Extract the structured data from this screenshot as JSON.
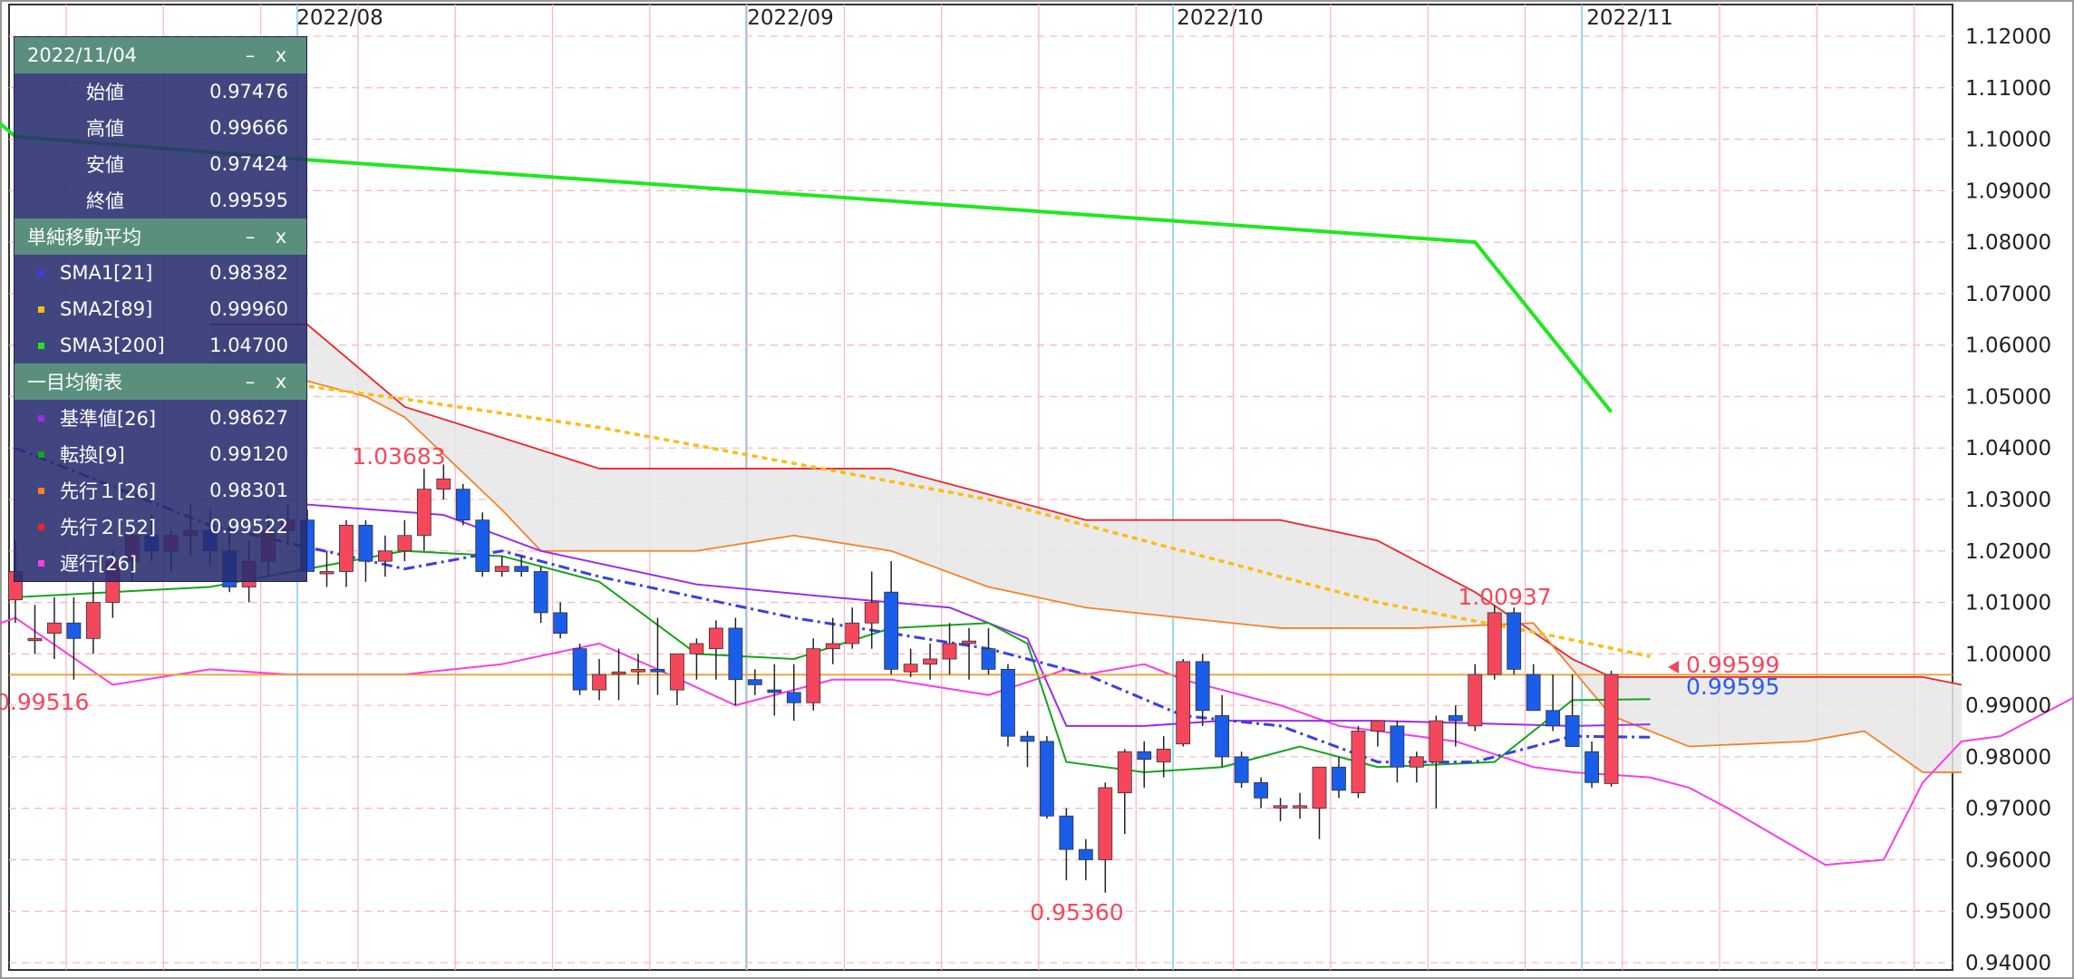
{
  "colors": {
    "up": "#f5475c",
    "down": "#1a5de8",
    "sma1": "#3b3fe0",
    "sma2": "#fdbc12",
    "sma3": "#1ee81e",
    "kijun": "#9c2cf0",
    "tenkan": "#12a61a",
    "senkou1": "#f58226",
    "senkou2": "#f0222a",
    "chikou": "#fa3ce6",
    "cloud": "#e6e6e6",
    "grid": "#f9b8c4",
    "month": "#7fcbe8",
    "hline": "#f0a030"
  },
  "panel": {
    "date": "2022/11/04",
    "ohlc": [
      {
        "label": "始値",
        "value": "0.97476"
      },
      {
        "label": "高値",
        "value": "0.99666"
      },
      {
        "label": "安値",
        "value": "0.97424"
      },
      {
        "label": "終値",
        "value": "0.99595"
      }
    ],
    "sma_title": "単純移動平均",
    "sma": [
      {
        "label": "SMA1[21]",
        "value": "0.98382",
        "color": "#3b3fe0"
      },
      {
        "label": "SMA2[89]",
        "value": "0.99960",
        "color": "#fdbc12"
      },
      {
        "label": "SMA3[200]",
        "value": "1.04700",
        "color": "#1ee81e"
      }
    ],
    "ichimoku_title": "一目均衡表",
    "ichimoku": [
      {
        "label": "基準値[26]",
        "value": "0.98627",
        "color": "#9c2cf0"
      },
      {
        "label": "転換[9]",
        "value": "0.99120",
        "color": "#12a61a"
      },
      {
        "label": "先行１[26]",
        "value": "0.98301",
        "color": "#f58226"
      },
      {
        "label": "先行２[52]",
        "value": "0.99522",
        "color": "#f0222a"
      },
      {
        "label": "遅行[26]",
        "value": "",
        "color": "#fa3ce6"
      }
    ],
    "min_label": "–",
    "close_label": "x"
  },
  "chart_data": {
    "type": "candlestick",
    "x_ticks": [
      "2022/08",
      "2022/09",
      "2022/10",
      "2022/11"
    ],
    "ylim": [
      0.94,
      1.12
    ],
    "y_ticks": [
      "1.12000",
      "1.11000",
      "1.10000",
      "1.09000",
      "1.08000",
      "1.07000",
      "1.06000",
      "1.05000",
      "1.04000",
      "1.03000",
      "1.02000",
      "1.01000",
      "1.00000",
      "0.99000",
      "0.98000",
      "0.97000",
      "0.96000",
      "0.95000",
      "0.94000"
    ],
    "price_line": 0.99595,
    "annotations": [
      {
        "text": "1.03683",
        "value": 1.03683
      },
      {
        "text": "0.95360",
        "value": 0.9536
      },
      {
        "text": "1.00937",
        "value": 1.00937
      },
      {
        "text": "0.99516",
        "value": 0.99516
      }
    ],
    "bid_label": "0.99599",
    "ask_label": "0.99595",
    "candles": [
      [
        1.0105,
        1.022,
        1.006,
        1.016
      ],
      [
        1.003,
        1.0095,
        1.0,
        1.003
      ],
      [
        1.004,
        1.011,
        0.999,
        1.006
      ],
      [
        1.006,
        1.011,
        0.995,
        1.003
      ],
      [
        1.003,
        1.014,
        1.0,
        1.01
      ],
      [
        1.01,
        1.02,
        1.007,
        1.018
      ],
      [
        1.018,
        1.025,
        1.014,
        1.023
      ],
      [
        1.023,
        1.027,
        1.018,
        1.02
      ],
      [
        1.02,
        1.024,
        1.016,
        1.023
      ],
      [
        1.023,
        1.029,
        1.019,
        1.024
      ],
      [
        1.024,
        1.028,
        1.017,
        1.02
      ],
      [
        1.02,
        1.025,
        1.012,
        1.013
      ],
      [
        1.013,
        1.022,
        1.01,
        1.018
      ],
      [
        1.018,
        1.027,
        1.015,
        1.024
      ],
      [
        1.024,
        1.029,
        1.021,
        1.026
      ],
      [
        1.026,
        1.028,
        1.016,
        1.016
      ],
      [
        1.016,
        1.02,
        1.013,
        1.016
      ],
      [
        1.016,
        1.026,
        1.013,
        1.025
      ],
      [
        1.025,
        1.026,
        1.014,
        1.018
      ],
      [
        1.018,
        1.023,
        1.015,
        1.02
      ],
      [
        1.02,
        1.026,
        1.018,
        1.023
      ],
      [
        1.023,
        1.036,
        1.02,
        1.032
      ],
      [
        1.032,
        1.0368,
        1.03,
        1.034
      ],
      [
        1.032,
        1.033,
        1.025,
        1.026
      ],
      [
        1.026,
        1.0275,
        1.015,
        1.016
      ],
      [
        1.016,
        1.019,
        1.015,
        1.017
      ],
      [
        1.017,
        1.019,
        1.015,
        1.016
      ],
      [
        1.016,
        1.017,
        1.006,
        1.008
      ],
      [
        1.008,
        1.01,
        1.003,
        1.004
      ],
      [
        1.001,
        1.002,
        0.992,
        0.993
      ],
      [
        0.993,
        0.999,
        0.991,
        0.996
      ],
      [
        0.9965,
        1.001,
        0.991,
        0.9965
      ],
      [
        0.9965,
        1.0,
        0.994,
        0.997
      ],
      [
        0.997,
        1.007,
        0.992,
        0.9965
      ],
      [
        0.993,
        1.0,
        0.99,
        1.0
      ],
      [
        1.0,
        1.003,
        0.995,
        1.002
      ],
      [
        1.001,
        1.0065,
        0.995,
        1.005
      ],
      [
        1.005,
        1.007,
        0.99,
        0.995
      ],
      [
        0.995,
        0.997,
        0.992,
        0.994
      ],
      [
        0.993,
        0.998,
        0.988,
        0.9925
      ],
      [
        0.9925,
        0.998,
        0.987,
        0.9905
      ],
      [
        0.9905,
        1.003,
        0.989,
        1.001
      ],
      [
        1.001,
        1.007,
        0.998,
        1.002
      ],
      [
        1.002,
        1.009,
        1.001,
        1.006
      ],
      [
        1.006,
        1.016,
        1.001,
        1.01
      ],
      [
        1.012,
        1.018,
        0.996,
        0.997
      ],
      [
        0.9965,
        1.001,
        0.9955,
        0.998
      ],
      [
        0.998,
        1.002,
        0.995,
        0.999
      ],
      [
        0.999,
        1.006,
        0.996,
        1.002
      ],
      [
        1.002,
        1.005,
        0.995,
        1.0025
      ],
      [
        1.001,
        1.005,
        0.996,
        0.997
      ],
      [
        0.997,
        0.998,
        0.982,
        0.984
      ],
      [
        0.984,
        0.985,
        0.978,
        0.983
      ],
      [
        0.983,
        0.984,
        0.968,
        0.9685
      ],
      [
        0.9685,
        0.97,
        0.956,
        0.962
      ],
      [
        0.962,
        0.964,
        0.956,
        0.96
      ],
      [
        0.96,
        0.975,
        0.9536,
        0.974
      ],
      [
        0.973,
        0.9815,
        0.965,
        0.981
      ],
      [
        0.981,
        0.983,
        0.974,
        0.9795
      ],
      [
        0.979,
        0.984,
        0.976,
        0.9815
      ],
      [
        0.9825,
        0.999,
        0.982,
        0.9985
      ],
      [
        0.9985,
        1.0,
        0.986,
        0.989
      ],
      [
        0.988,
        0.992,
        0.978,
        0.98
      ],
      [
        0.98,
        0.981,
        0.974,
        0.975
      ],
      [
        0.975,
        0.976,
        0.97,
        0.972
      ],
      [
        0.9705,
        0.972,
        0.9675,
        0.9705
      ],
      [
        0.9705,
        0.973,
        0.968,
        0.9705
      ],
      [
        0.97,
        0.977,
        0.964,
        0.978
      ],
      [
        0.978,
        0.98,
        0.972,
        0.9735
      ],
      [
        0.973,
        0.986,
        0.972,
        0.985
      ],
      [
        0.985,
        0.987,
        0.982,
        0.987
      ],
      [
        0.986,
        0.987,
        0.975,
        0.978
      ],
      [
        0.978,
        0.981,
        0.975,
        0.98
      ],
      [
        0.979,
        0.988,
        0.97,
        0.987
      ],
      [
        0.988,
        0.99,
        0.982,
        0.987
      ],
      [
        0.986,
        0.998,
        0.985,
        0.996
      ],
      [
        0.996,
        1.0094,
        0.995,
        1.008
      ],
      [
        1.008,
        1.009,
        0.996,
        0.997
      ],
      [
        0.996,
        0.998,
        0.99,
        0.989
      ],
      [
        0.989,
        0.996,
        0.985,
        0.986
      ],
      [
        0.988,
        0.996,
        0.983,
        0.982
      ],
      [
        0.981,
        0.983,
        0.974,
        0.975
      ],
      [
        0.9748,
        0.9967,
        0.9742,
        0.996
      ]
    ],
    "sma3": [
      [
        -2,
        1.107
      ],
      [
        0,
        1.1005
      ],
      [
        15,
        1.096
      ],
      [
        30,
        1.092
      ],
      [
        45,
        1.088
      ],
      [
        60,
        1.084
      ],
      [
        75,
        1.08
      ],
      [
        82,
        1.047
      ]
    ],
    "sma2": [
      [
        10,
        1.0545
      ],
      [
        20,
        1.0495
      ],
      [
        30,
        1.044
      ],
      [
        40,
        1.037
      ],
      [
        50,
        1.03
      ],
      [
        60,
        1.02
      ],
      [
        70,
        1.01
      ],
      [
        79,
        1.0035
      ],
      [
        84,
        0.9995
      ]
    ],
    "sma1": [
      [
        0,
        1.04
      ],
      [
        10,
        1.025
      ],
      [
        20,
        1.0165
      ],
      [
        25,
        1.02
      ],
      [
        30,
        1.015
      ],
      [
        40,
        1.007
      ],
      [
        50,
        1.001
      ],
      [
        55,
        0.996
      ],
      [
        60,
        0.988
      ],
      [
        65,
        0.986
      ],
      [
        70,
        0.979
      ],
      [
        75,
        0.979
      ],
      [
        80,
        0.984
      ],
      [
        84,
        0.9838
      ]
    ],
    "kijun": [
      [
        15,
        1.029
      ],
      [
        22,
        1.027
      ],
      [
        27,
        1.02
      ],
      [
        35,
        1.0135
      ],
      [
        42,
        1.011
      ],
      [
        48,
        1.009
      ],
      [
        52,
        1.003
      ],
      [
        54,
        0.986
      ],
      [
        58,
        0.986
      ],
      [
        62,
        0.987
      ],
      [
        70,
        0.987
      ],
      [
        80,
        0.986
      ],
      [
        84,
        0.9863
      ]
    ],
    "tenkan": [
      [
        0,
        1.011
      ],
      [
        10,
        1.013
      ],
      [
        20,
        1.02
      ],
      [
        25,
        1.019
      ],
      [
        30,
        1.014
      ],
      [
        35,
        1.0
      ],
      [
        40,
        0.999
      ],
      [
        45,
        1.005
      ],
      [
        50,
        1.006
      ],
      [
        52,
        1.002
      ],
      [
        54,
        0.979
      ],
      [
        58,
        0.977
      ],
      [
        62,
        0.978
      ],
      [
        66,
        0.982
      ],
      [
        70,
        0.978
      ],
      [
        76,
        0.979
      ],
      [
        80,
        0.991
      ],
      [
        84,
        0.9912
      ]
    ],
    "senkou1": [
      [
        10,
        1.054
      ],
      [
        15,
        1.053
      ],
      [
        18,
        1.05
      ],
      [
        20,
        1.046
      ],
      [
        25,
        1.028
      ],
      [
        27,
        1.02
      ],
      [
        35,
        1.02
      ],
      [
        40,
        1.023
      ],
      [
        45,
        1.02
      ],
      [
        50,
        1.013
      ],
      [
        55,
        1.009
      ],
      [
        65,
        1.005
      ],
      [
        72,
        1.005
      ],
      [
        78,
        1.006
      ],
      [
        82,
        0.988
      ],
      [
        86,
        0.982
      ],
      [
        92,
        0.983
      ],
      [
        95,
        0.985
      ],
      [
        98,
        0.977
      ],
      [
        100,
        0.977
      ]
    ],
    "senkou2": [
      [
        10,
        1.064
      ],
      [
        15,
        1.064
      ],
      [
        20,
        1.048
      ],
      [
        30,
        1.036
      ],
      [
        45,
        1.036
      ],
      [
        50,
        1.031
      ],
      [
        55,
        1.026
      ],
      [
        65,
        1.026
      ],
      [
        70,
        1.022
      ],
      [
        75,
        1.012
      ],
      [
        80,
        0.999
      ],
      [
        82,
        0.9955
      ],
      [
        98,
        0.9955
      ],
      [
        100,
        0.994
      ]
    ],
    "chikou": [
      [
        -3,
        1.003
      ],
      [
        0,
        1.007
      ],
      [
        5,
        0.994
      ],
      [
        10,
        0.997
      ],
      [
        14,
        0.996
      ],
      [
        20,
        0.996
      ],
      [
        25,
        0.998
      ],
      [
        30,
        1.002
      ],
      [
        33,
        0.997
      ],
      [
        37,
        0.99
      ],
      [
        42,
        0.995
      ],
      [
        45,
        0.995
      ],
      [
        50,
        0.992
      ],
      [
        54,
        0.997
      ],
      [
        55,
        0.996
      ],
      [
        58,
        0.998
      ],
      [
        60,
        0.995
      ],
      [
        63,
        0.992
      ],
      [
        65,
        0.99
      ],
      [
        68,
        0.986
      ],
      [
        72,
        0.984
      ],
      [
        74,
        0.983
      ],
      [
        78,
        0.978
      ],
      [
        80,
        0.977
      ],
      [
        84,
        0.976
      ],
      [
        86,
        0.974
      ],
      [
        88,
        0.97
      ],
      [
        93,
        0.959
      ],
      [
        96,
        0.96
      ],
      [
        98,
        0.975
      ],
      [
        100,
        0.983
      ],
      [
        102,
        0.984
      ],
      [
        106,
        0.992
      ],
      [
        110,
        0.981
      ],
      [
        113,
        0.974
      ],
      [
        116,
        0.97
      ],
      [
        120,
        0.97
      ],
      [
        123,
        0.968
      ],
      [
        125,
        0.979
      ],
      [
        128,
        0.97
      ],
      [
        131,
        0.979
      ],
      [
        134,
        0.983
      ],
      [
        138,
        0.987
      ],
      [
        140,
        0.996
      ]
    ]
  }
}
